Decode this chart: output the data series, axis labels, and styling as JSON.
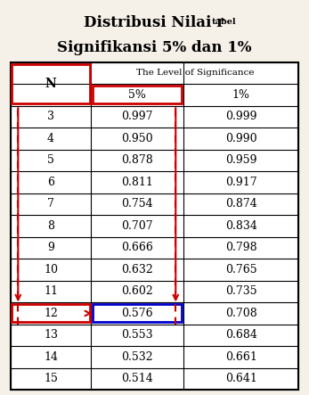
{
  "title_line1": "Distribusi Nilai r",
  "title_subscript": "tabel",
  "title_line2": "Signifikansi 5% dan 1%",
  "col_header_span": "The Level of Significance",
  "col_n": "N",
  "col_5": "5%",
  "col_1": "1%",
  "rows": [
    [
      3,
      0.997,
      0.999
    ],
    [
      4,
      0.95,
      0.99
    ],
    [
      5,
      0.878,
      0.959
    ],
    [
      6,
      0.811,
      0.917
    ],
    [
      7,
      0.754,
      0.874
    ],
    [
      8,
      0.707,
      0.834
    ],
    [
      9,
      0.666,
      0.798
    ],
    [
      10,
      0.632,
      0.765
    ],
    [
      11,
      0.602,
      0.735
    ],
    [
      12,
      0.576,
      0.708
    ],
    [
      13,
      0.553,
      0.684
    ],
    [
      14,
      0.532,
      0.661
    ],
    [
      15,
      0.514,
      0.641
    ]
  ],
  "highlight_row_n": 12,
  "highlight_row_idx": 9,
  "bg_color": "#f5f0e8",
  "table_bg": "#ffffff",
  "border_color": "#000000",
  "red_box_color": "#cc0000",
  "blue_box_color": "#0000cc",
  "dashed_red": "#cc0000"
}
